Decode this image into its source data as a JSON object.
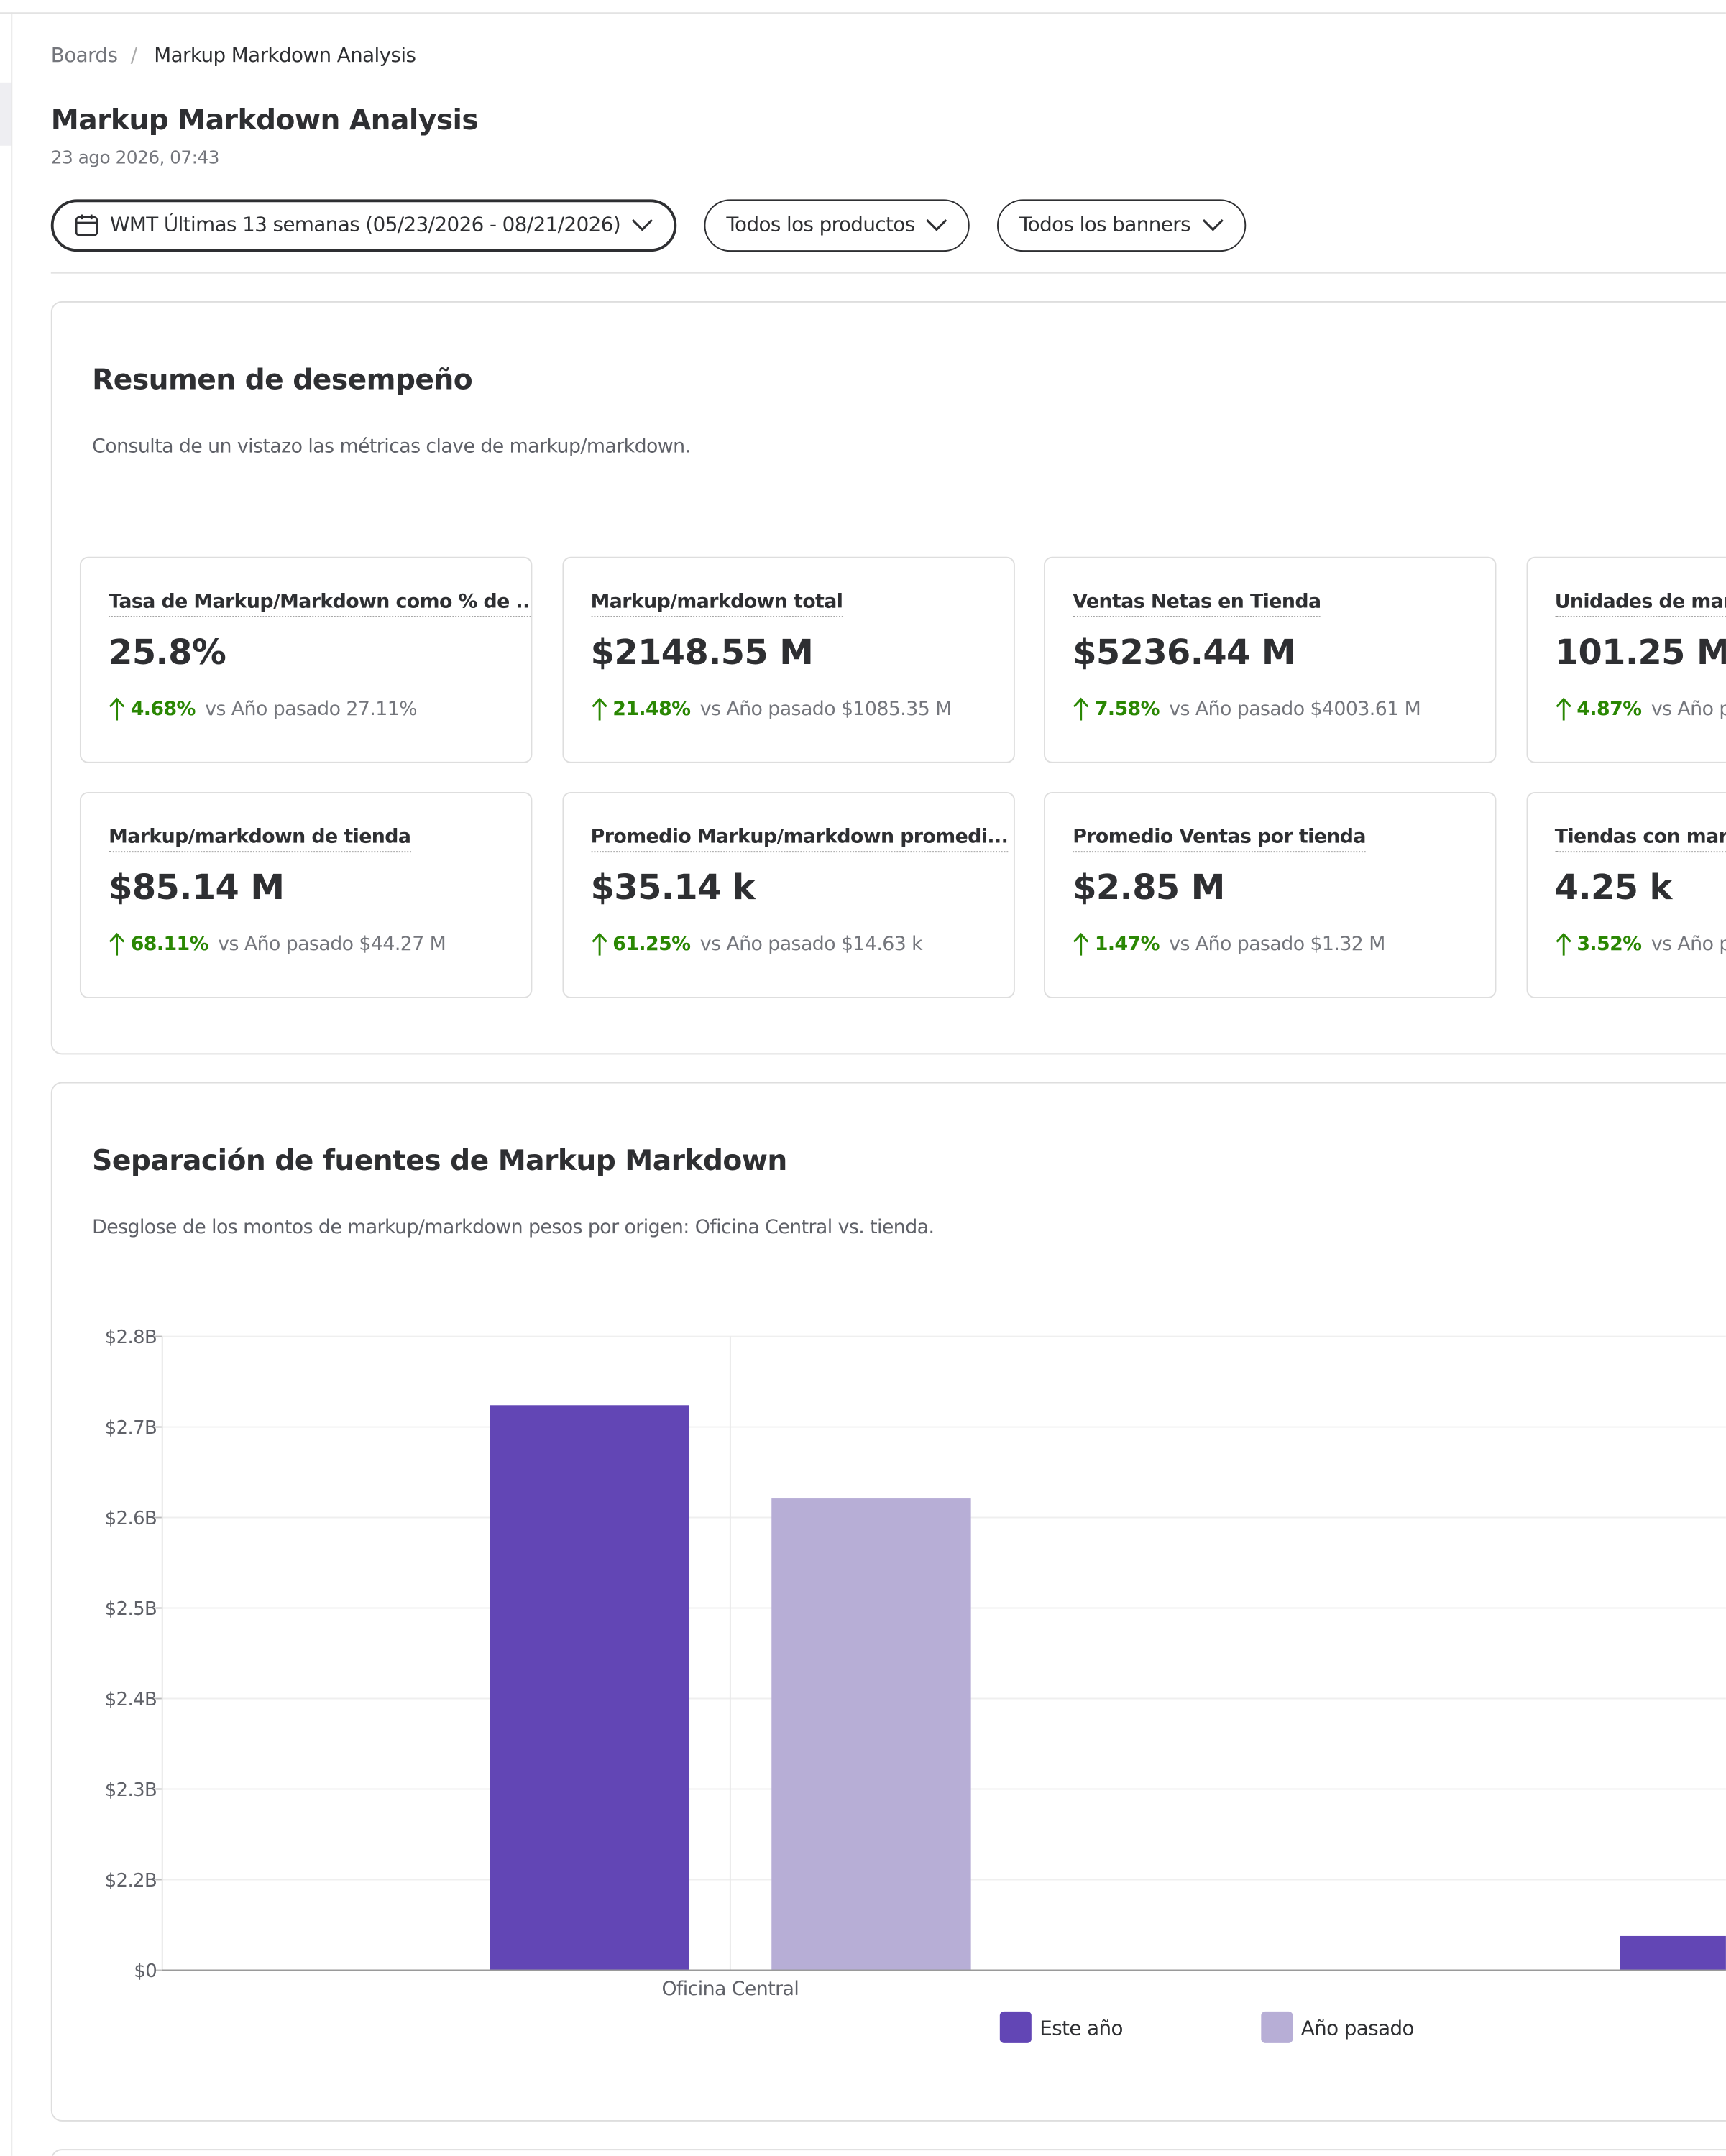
{
  "header": {
    "breadcrumb": [
      "Boards",
      "Markup Markdown Analysis"
    ],
    "separator": "/",
    "title": "Markup Markdown Analysis",
    "timestamp": "23 ago 2026, 07:43",
    "filters": [
      "WMT Últimas 13 semanas (05/23/2026 - 08/21/2026)",
      "Todos los productos",
      "Todos los banners"
    ]
  },
  "summary": {
    "title": "Resumen de desempeño",
    "description": "Consulta de un vistazo las métricas clave de markup/markdown.",
    "cards": [
      {
        "label": "Tasa de Markup/Markdown como % de ...",
        "value": "25.8%",
        "change": "4.68%",
        "comparison": "vs Año pasado 27.11%"
      },
      {
        "label": "Markup/markdown total",
        "value": "$2148.55 M",
        "change": "21.48%",
        "comparison": "vs Año pasado $1085.35 M"
      },
      {
        "label": "Ventas Netas en Tienda",
        "value": "$5236.44 M",
        "change": "7.58%",
        "comparison": "vs Año pasado $4003.61 M"
      },
      {
        "label": "Unidades de mark",
        "value": "101.25 M",
        "change": "4.87%",
        "comparison": "vs Año pa"
      },
      {
        "label": "Markup/markdown de tienda",
        "value": "$85.14 M",
        "change": "68.11%",
        "comparison": "vs Año pasado $44.27 M"
      },
      {
        "label": "Promedio Markup/markdown promedi...",
        "value": "$35.14 k",
        "change": "61.25%",
        "comparison": "vs Año pasado $14.63 k"
      },
      {
        "label": "Promedio Ventas por tienda",
        "value": "$2.85 M",
        "change": "1.47%",
        "comparison": "vs Año pasado $1.32 M"
      },
      {
        "label": "Tiendas con mark",
        "value": "4.25 k",
        "change": "3.52%",
        "comparison": "vs Año p"
      }
    ]
  },
  "chart_data": {
    "type": "bar",
    "title": "Separación de fuentes de Markup Markdown",
    "subtitle": "Desglose de los montos de markup/markdown pesos por origen: Oficina Central vs. tienda.",
    "categories": [
      "Oficina Central",
      null
    ],
    "series": [
      {
        "name": "Este año",
        "color": "#6246b5",
        "values": [
          2724000000,
          830000000
        ]
      },
      {
        "name": "Año pasado",
        "color": "#b7aed6",
        "values": [
          2621000000,
          null
        ]
      }
    ],
    "ylim": [
      0,
      2800000000
    ],
    "yticks": [
      {
        "value": 0,
        "label": "$0"
      },
      {
        "value": 2200000000,
        "label": "$2.2B"
      },
      {
        "value": 2300000000,
        "label": "$2.3B"
      },
      {
        "value": 2400000000,
        "label": "$2.4B"
      },
      {
        "value": 2500000000,
        "label": "$2.5B"
      },
      {
        "value": 2600000000,
        "label": "$2.6B"
      },
      {
        "value": 2700000000,
        "label": "$2.7B"
      },
      {
        "value": 2800000000,
        "label": "$2.8B"
      }
    ],
    "grid": true
  }
}
